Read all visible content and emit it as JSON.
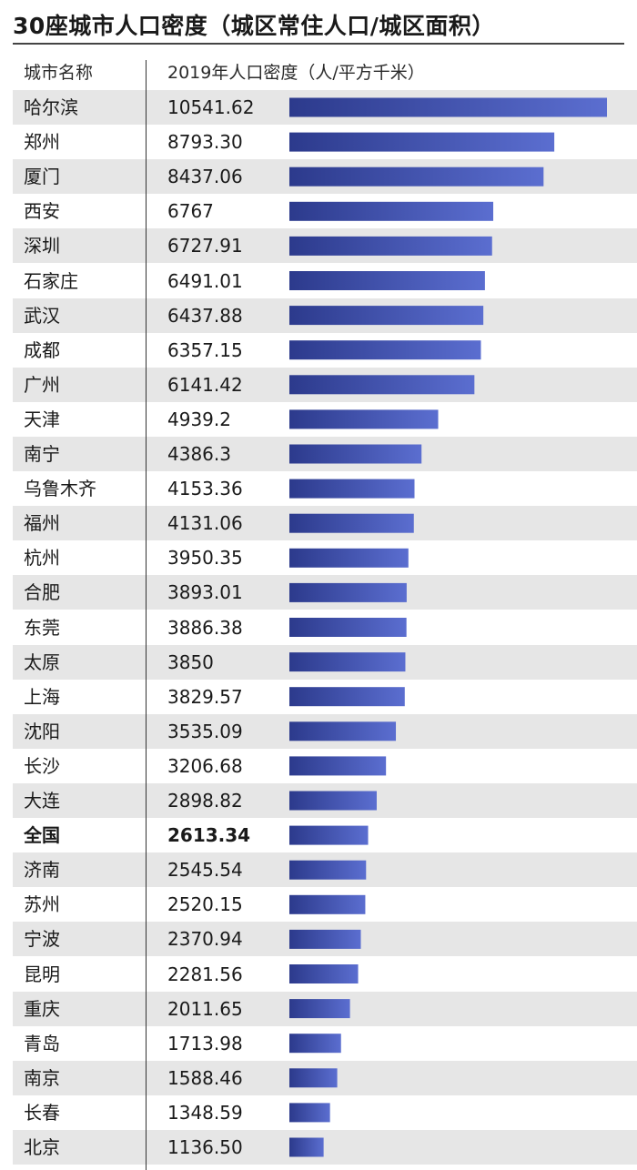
{
  "title": "30座城市人口密度（城区常住人口/城区面积）",
  "colors": {
    "bar_start": "#2c3a8c",
    "bar_end": "#5b6ed0",
    "shade": "#e6e6e6"
  },
  "chart_data": {
    "type": "bar",
    "orientation": "horizontal",
    "title": "30座城市人口密度（城区常住人口/城区面积）",
    "column_headers": [
      "城市名称",
      "2019年人口密度（人/平方千米）"
    ],
    "categories": [
      "哈尔滨",
      "郑州",
      "厦门",
      "西安",
      "深圳",
      "石家庄",
      "武汉",
      "成都",
      "广州",
      "天津",
      "南宁",
      "乌鲁木齐",
      "福州",
      "杭州",
      "合肥",
      "东莞",
      "太原",
      "上海",
      "沈阳",
      "长沙",
      "大连",
      "全国",
      "济南",
      "苏州",
      "宁波",
      "昆明",
      "重庆",
      "青岛",
      "南京",
      "长春",
      "北京"
    ],
    "value_labels": [
      "10541.62",
      "8793.30",
      "8437.06",
      "6767",
      "6727.91",
      "6491.01",
      "6437.88",
      "6357.15",
      "6141.42",
      "4939.2",
      "4386.3",
      "4153.36",
      "4131.06",
      "3950.35",
      "3893.01",
      "3886.38",
      "3850",
      "3829.57",
      "3535.09",
      "3206.68",
      "2898.82",
      "2613.34",
      "2545.54",
      "2520.15",
      "2370.94",
      "2281.56",
      "2011.65",
      "1713.98",
      "1588.46",
      "1348.59",
      "1136.50"
    ],
    "values": [
      10541.62,
      8793.3,
      8437.06,
      6767,
      6727.91,
      6491.01,
      6437.88,
      6357.15,
      6141.42,
      4939.2,
      4386.3,
      4153.36,
      4131.06,
      3950.35,
      3893.01,
      3886.38,
      3850,
      3829.57,
      3535.09,
      3206.68,
      2898.82,
      2613.34,
      2545.54,
      2520.15,
      2370.94,
      2281.56,
      2011.65,
      1713.98,
      1588.46,
      1348.59,
      1136.5
    ],
    "highlight": "全国",
    "xlim": [
      0,
      10541.62
    ],
    "grid": false,
    "legend": "none"
  }
}
